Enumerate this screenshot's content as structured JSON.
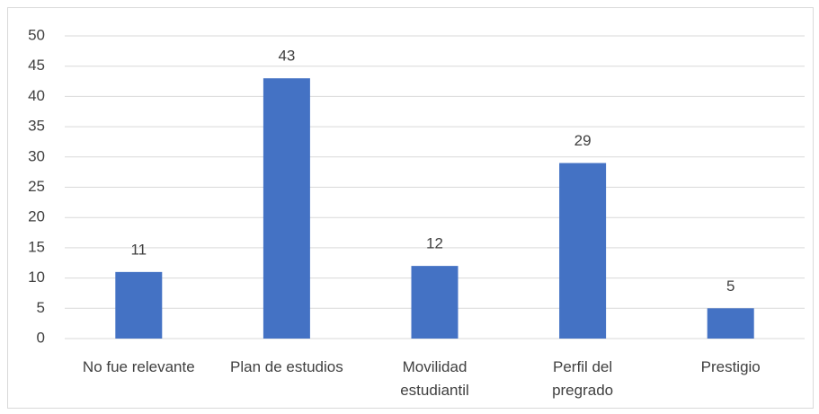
{
  "chart_data": {
    "type": "bar",
    "categories": [
      "No fue relevante",
      "Plan de estudios",
      "Movilidad\nestudiantil",
      "Perfil del\npregrado",
      "Prestigio"
    ],
    "values": [
      11,
      43,
      12,
      29,
      5
    ],
    "color": "#4472c4",
    "ylim": [
      0,
      50
    ],
    "yticks": [
      0,
      5,
      10,
      15,
      20,
      25,
      30,
      35,
      40,
      45,
      50
    ],
    "grid": true
  }
}
